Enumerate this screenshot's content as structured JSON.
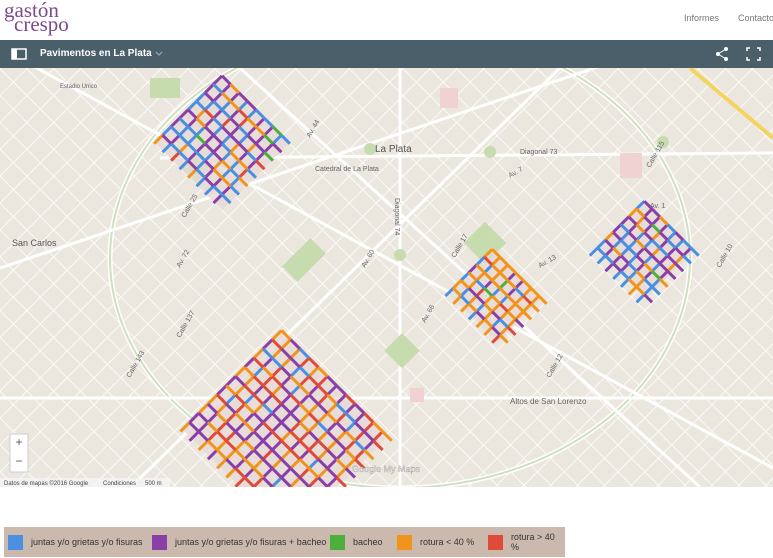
{
  "header": {
    "logo_top": "gastón",
    "logo_bottom": "crespo",
    "nav": [
      "Informes",
      "Contacto"
    ]
  },
  "toolbar": {
    "title": "Pavimentos en La Plata"
  },
  "map": {
    "labels": [
      "La Plata",
      "Diagonal 73",
      "Catedral de La Plata",
      "San Carlos",
      "Altos de San Lorenzo",
      "Estadio Unico",
      "Av. 44",
      "Av. 60",
      "Av. 66",
      "Av. 13",
      "Av. 7",
      "Av. 1",
      "Diagonal 74",
      "Calle 115",
      "Calle 12",
      "Calle 17",
      "Calle 137",
      "Calle 25",
      "Calle 143",
      "Calle 10",
      "Av. 72"
    ],
    "zoom": [
      "+",
      "−"
    ],
    "attribution": [
      "Datos de mapas ©2016 Google",
      "Condiciones",
      "500 m"
    ],
    "brand": "Google My Maps"
  },
  "legend": [
    {
      "label": "juntas y/o grietas y/o fisuras",
      "color": "#4a8fe0"
    },
    {
      "label": "juntas y/o grietas y/o fisuras + bacheo",
      "color": "#8a3fa8"
    },
    {
      "label": "bacheo",
      "color": "#4caf3c"
    },
    {
      "label": "rotura < 40 %",
      "color": "#f0941c"
    },
    {
      "label": "rotura > 40 %",
      "color": "#e04a38"
    }
  ]
}
